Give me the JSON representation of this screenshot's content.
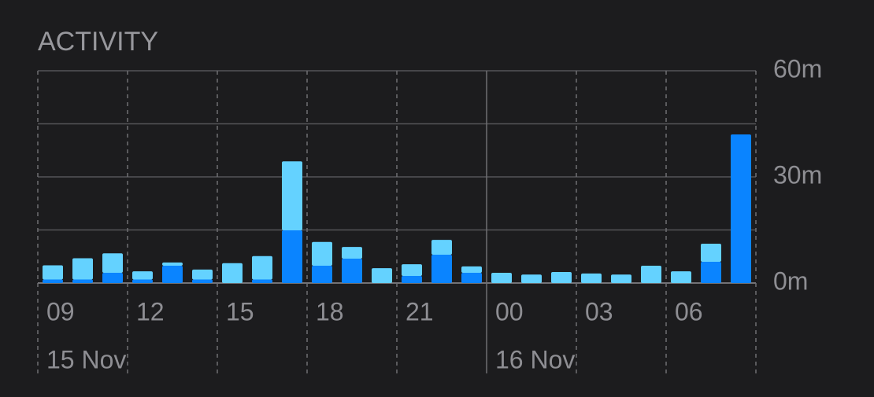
{
  "chart_data": {
    "type": "stacked-bar",
    "title": "ACTIVITY",
    "categories": [
      "09",
      null,
      null,
      "12",
      null,
      null,
      "15",
      null,
      null,
      "18",
      null,
      null,
      "21",
      null,
      null,
      "00",
      null,
      null,
      "03",
      null,
      null,
      "06",
      null,
      null
    ],
    "dates": [
      {
        "label": "15 Nov",
        "category_index": 0
      },
      {
        "label": "16 Nov",
        "category_index": 15
      }
    ],
    "series": [
      {
        "color": "#0a84ff",
        "values": [
          1,
          1,
          2.9,
          1,
          4.9,
          1,
          0,
          1,
          14.9,
          4.9,
          6.9,
          0,
          2,
          8,
          2.9,
          0,
          0,
          0,
          0,
          0,
          0,
          0,
          6,
          42
        ]
      },
      {
        "color": "#64d2ff",
        "values": [
          4,
          6,
          5.5,
          2.3,
          0.9,
          2.8,
          5.6,
          6.6,
          19.5,
          6.7,
          3.3,
          4.2,
          3.3,
          4.2,
          1.8,
          2.9,
          2.4,
          3.1,
          2.7,
          2.4,
          4.9,
          3.3,
          5.1,
          0
        ]
      }
    ],
    "ylim": [
      0,
      60
    ],
    "yticks": [
      {
        "value": 0,
        "label": "0m"
      },
      {
        "value": 30,
        "label": "30m"
      },
      {
        "value": 60,
        "label": "60m"
      }
    ],
    "ygrid": [
      0,
      15,
      30,
      45,
      60
    ]
  }
}
